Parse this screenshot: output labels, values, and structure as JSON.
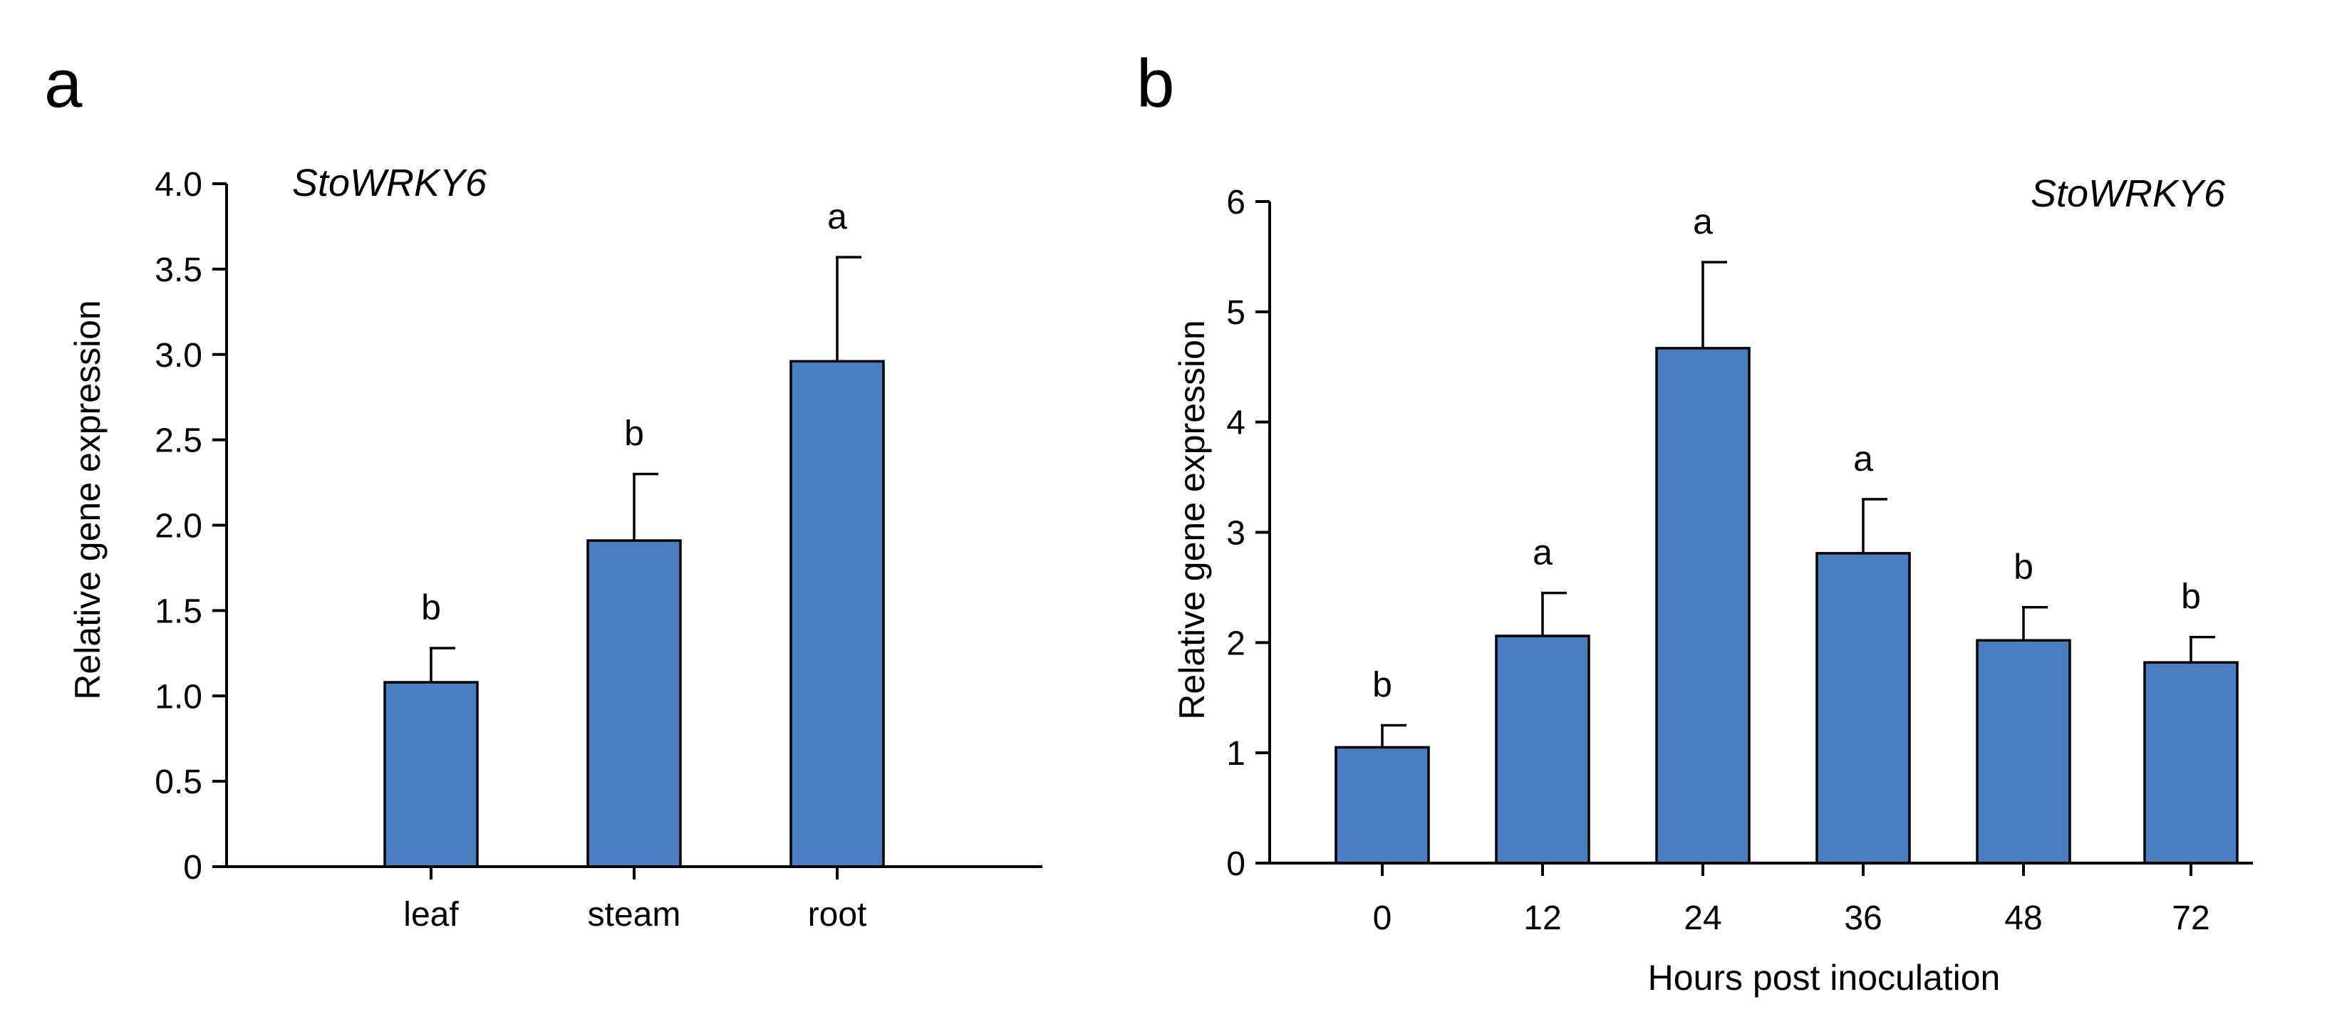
{
  "bar_color": "#4a7ec0",
  "chart_data": [
    {
      "panel": "a",
      "type": "bar",
      "title": "StoWRKY6",
      "xlabel": "",
      "ylabel": "Relative gene expression",
      "ylim": [
        0,
        4.0
      ],
      "yticks": [
        0,
        0.5,
        1.0,
        1.5,
        2.0,
        2.5,
        3.0,
        3.5,
        4.0
      ],
      "ytick_labels": [
        "0",
        "0.5",
        "1.0",
        "1.5",
        "2.0",
        "2.5",
        "3.0",
        "3.5",
        "4.0"
      ],
      "categories": [
        "leaf",
        "steam",
        "root"
      ],
      "values": [
        1.08,
        1.91,
        2.96
      ],
      "errors": [
        0.2,
        0.39,
        0.61
      ],
      "significance": [
        "b",
        "b",
        "a"
      ]
    },
    {
      "panel": "b",
      "type": "bar",
      "title": "StoWRKY6",
      "xlabel": "Hours post inoculation",
      "ylabel": "Relative gene expression",
      "ylim": [
        0,
        6
      ],
      "yticks": [
        0,
        1,
        2,
        3,
        4,
        5,
        6
      ],
      "ytick_labels": [
        "0",
        "1",
        "2",
        "3",
        "4",
        "5",
        "6"
      ],
      "categories": [
        "0",
        "12",
        "24",
        "36",
        "48",
        "72"
      ],
      "values": [
        1.05,
        2.06,
        4.67,
        2.81,
        2.02,
        1.82
      ],
      "errors": [
        0.2,
        0.39,
        0.78,
        0.49,
        0.3,
        0.23
      ],
      "significance": [
        "b",
        "a",
        "a",
        "a",
        "b",
        "b"
      ]
    }
  ]
}
